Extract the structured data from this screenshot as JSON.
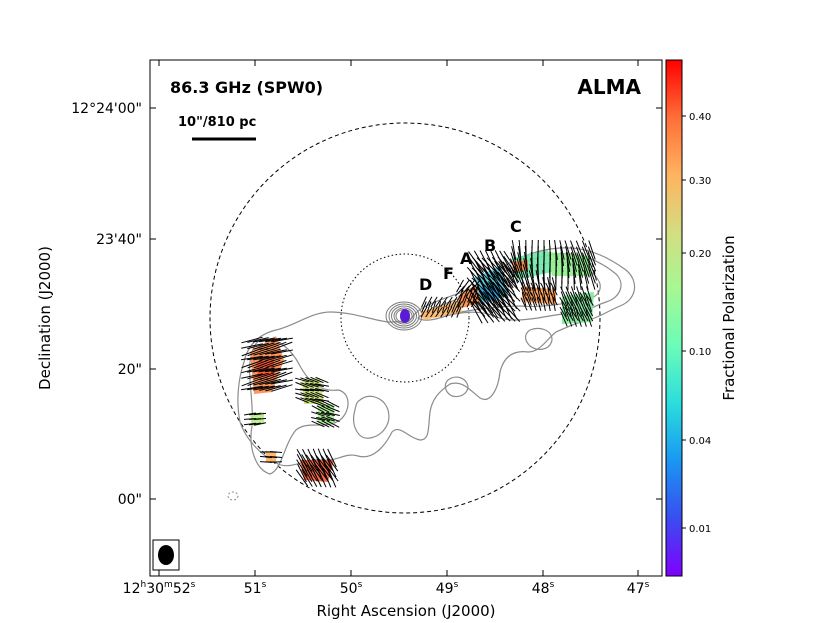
{
  "figure": {
    "frequency_label": "86.3 GHz (SPW0)",
    "telescope_label": "ALMA",
    "scale_bar_label": "10\"/810 pc",
    "region_labels": [
      "D",
      "F",
      "A",
      "B",
      "C"
    ],
    "x_axis": {
      "label": "Right Ascension (J2000)",
      "ticks": [
        {
          "h": "12",
          "m": "30",
          "s": "52"
        },
        {
          "h": "",
          "m": "",
          "s": "51"
        },
        {
          "h": "",
          "m": "",
          "s": "50"
        },
        {
          "h": "",
          "m": "",
          "s": "49"
        },
        {
          "h": "",
          "m": "",
          "s": "48"
        },
        {
          "h": "",
          "m": "",
          "s": "47"
        }
      ]
    },
    "y_axis": {
      "label": "Declination (J2000)",
      "ticks": [
        "12°24'00\"",
        "23'40\"",
        "20\"",
        "00\""
      ]
    },
    "colorbar": {
      "label": "Fractional Polarization",
      "ticks": [
        "0.40",
        "0.30",
        "0.20",
        "0.10",
        "0.04",
        "0.01"
      ],
      "gradient": [
        "#8000ff",
        "#3a4cf0",
        "#1996f3",
        "#2adddd",
        "#6afcb9",
        "#a6f893",
        "#d4dd80",
        "#ffb360",
        "#ff6e37",
        "#ff0000"
      ]
    },
    "colors": {
      "contour": "#8c8c8c",
      "core": "#5a1bd4"
    }
  }
}
